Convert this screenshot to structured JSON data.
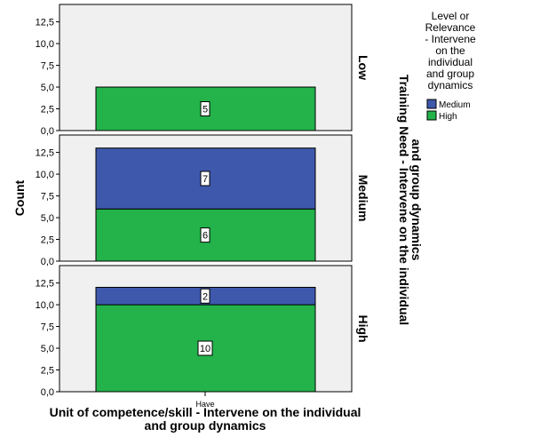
{
  "chart_data": {
    "type": "bar",
    "stacked": true,
    "categories": [
      "Have"
    ],
    "xlabel": "Unit of competence/skill - Intervene on the individual and group dynamics",
    "ylabel": "Count",
    "panel_label": "Training Need - Intervene on the individual and group dynamics",
    "ylim": [
      0,
      14.5
    ],
    "yticks": [
      "0,0",
      "2,5",
      "5,0",
      "7,5",
      "10,0",
      "12,5"
    ],
    "ytick_values": [
      0,
      2.5,
      5,
      7.5,
      10,
      12.5
    ],
    "legend": {
      "title": "Level or Relevance - Intervene on the individual and group dynamics",
      "title_lines": [
        "Level or",
        "Relevance",
        "- Intervene",
        "on the",
        "individual",
        "and group",
        "dynamics"
      ],
      "placement": "top-right",
      "entries": [
        {
          "name": "Medium",
          "color": "#3e58ac"
        },
        {
          "name": "High",
          "color": "#23b34a"
        }
      ]
    },
    "panels": [
      {
        "label": "Low",
        "segments": [
          {
            "series": "High",
            "value": 5,
            "label": "5",
            "color": "#23b34a"
          }
        ]
      },
      {
        "label": "Medium",
        "segments": [
          {
            "series": "High",
            "value": 6,
            "label": "6",
            "color": "#23b34a"
          },
          {
            "series": "Medium",
            "value": 7,
            "label": "7",
            "color": "#3e58ac"
          }
        ]
      },
      {
        "label": "High",
        "segments": [
          {
            "series": "High",
            "value": 10,
            "label": "10",
            "color": "#23b34a"
          },
          {
            "series": "Medium",
            "value": 2,
            "label": "2",
            "color": "#3e58ac"
          }
        ]
      }
    ],
    "grid": false,
    "panel_background": "#f0f0f0"
  }
}
